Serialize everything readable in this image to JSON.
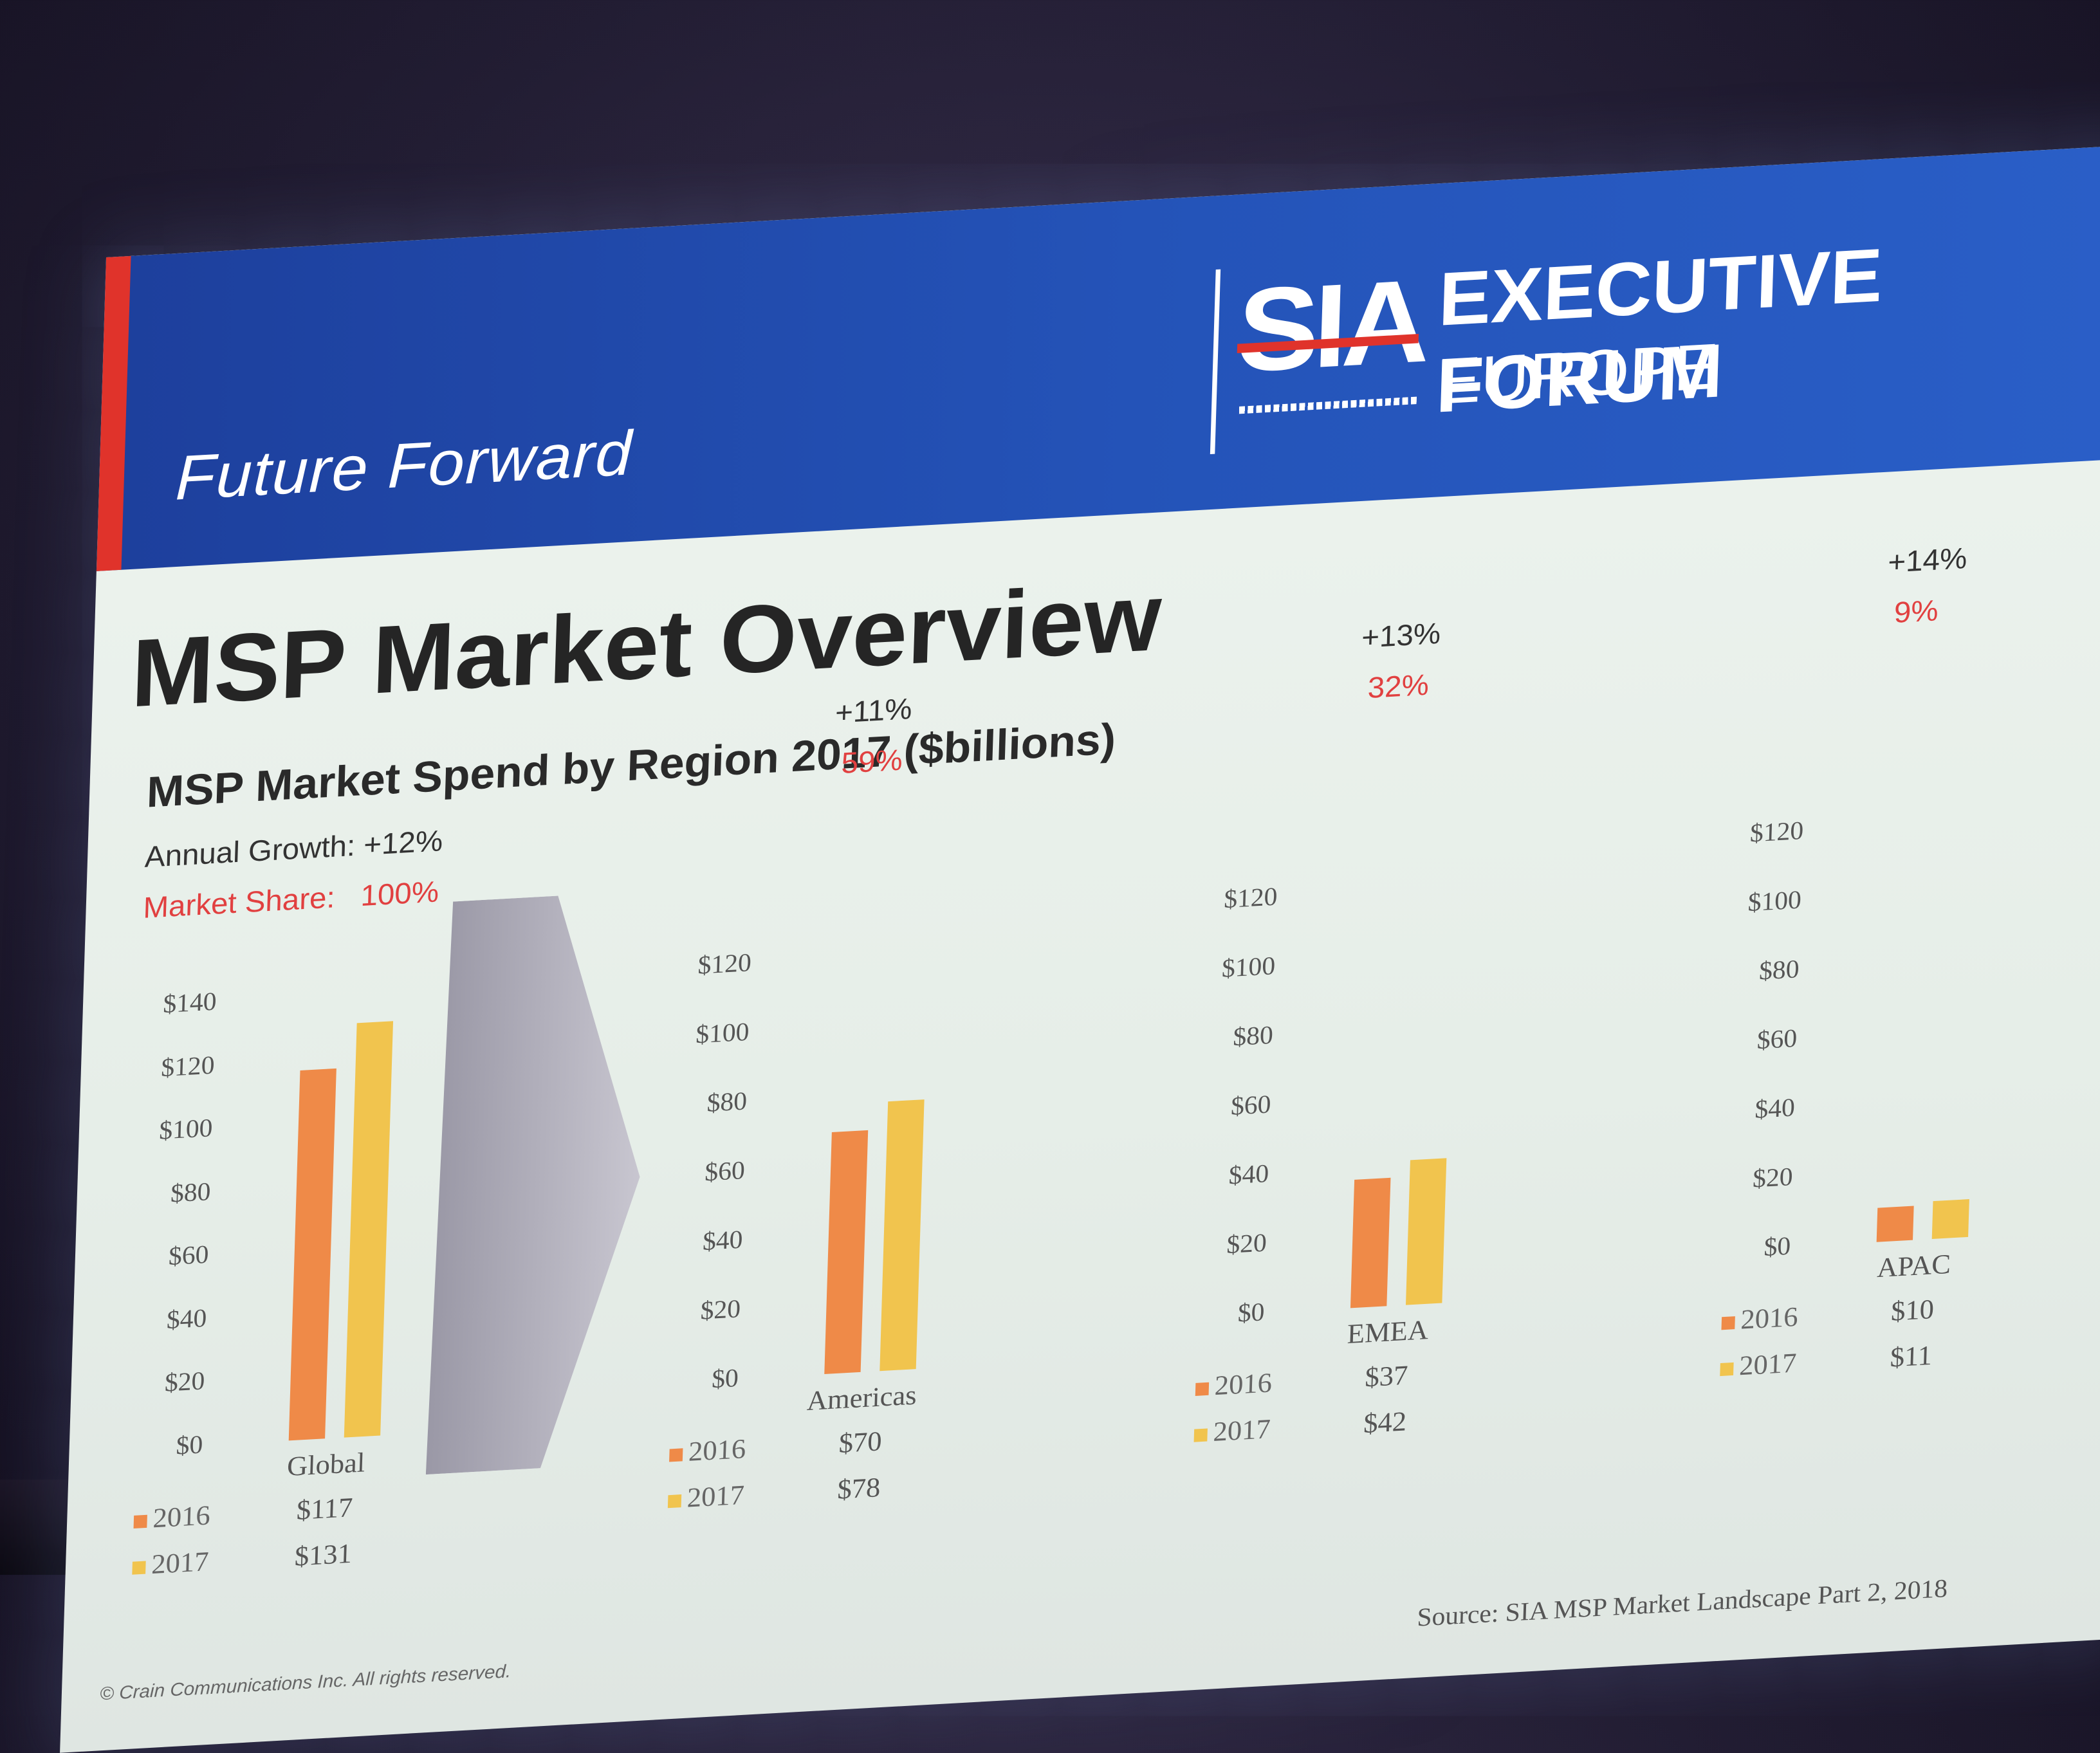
{
  "banner": {
    "tagline": "Future Forward",
    "logo_text": "SIA",
    "logo_subtext": "STAFFING INDUSTRY ANALYSTS",
    "forum_line1": "EXECUTIVE FORUM",
    "forum_line2": "EUROPE"
  },
  "slide": {
    "title": "MSP Market Overview",
    "subtitle": "MSP Market Spend by Region 2017 ($billions)",
    "growth_label": "Annual Growth: +12%",
    "share_label": "Market Share:",
    "share_value": "100%",
    "copyright": "© Crain Communications Inc. All rights reserved.",
    "source": "Source: SIA MSP Market Landscape Part 2, 2018"
  },
  "colors": {
    "bar_2016": "#ef8a48",
    "bar_2017": "#f1c44e",
    "banner_blue": "#2453b8",
    "accent_red": "#e0332b",
    "share_red": "#e14040"
  },
  "chart_data": [
    {
      "type": "bar",
      "categories": [
        "Global"
      ],
      "series": [
        {
          "name": "2016",
          "values": [
            117
          ],
          "value_labels": [
            "$117"
          ]
        },
        {
          "name": "2017",
          "values": [
            131
          ],
          "value_labels": [
            "$131"
          ]
        }
      ],
      "ylim": [
        0,
        140
      ],
      "ticks": [
        "$0",
        "$20",
        "$40",
        "$60",
        "$80",
        "$100",
        "$120",
        "$140"
      ],
      "growth": "Annual Growth: +12%",
      "share": "100%"
    },
    {
      "type": "bar",
      "categories": [
        "Americas"
      ],
      "series": [
        {
          "name": "2016",
          "values": [
            70
          ],
          "value_labels": [
            "$70"
          ]
        },
        {
          "name": "2017",
          "values": [
            78
          ],
          "value_labels": [
            "$78"
          ]
        }
      ],
      "ylim": [
        0,
        120
      ],
      "ticks": [
        "$0",
        "$20",
        "$40",
        "$60",
        "$80",
        "$100",
        "$120"
      ],
      "growth": "+11%",
      "share": "59%"
    },
    {
      "type": "bar",
      "categories": [
        "EMEA"
      ],
      "series": [
        {
          "name": "2016",
          "values": [
            37
          ],
          "value_labels": [
            "$37"
          ]
        },
        {
          "name": "2017",
          "values": [
            42
          ],
          "value_labels": [
            "$42"
          ]
        }
      ],
      "ylim": [
        0,
        120
      ],
      "ticks": [
        "$0",
        "$20",
        "$40",
        "$60",
        "$80",
        "$100",
        "$120"
      ],
      "growth": "+13%",
      "share": "32%"
    },
    {
      "type": "bar",
      "categories": [
        "APAC"
      ],
      "series": [
        {
          "name": "2016",
          "values": [
            10
          ],
          "value_labels": [
            "$10"
          ]
        },
        {
          "name": "2017",
          "values": [
            11
          ],
          "value_labels": [
            "$11"
          ]
        }
      ],
      "ylim": [
        0,
        120
      ],
      "ticks": [
        "$0",
        "$20",
        "$40",
        "$60",
        "$80",
        "$100",
        "$120"
      ],
      "growth": "+14%",
      "share": "9%"
    }
  ]
}
